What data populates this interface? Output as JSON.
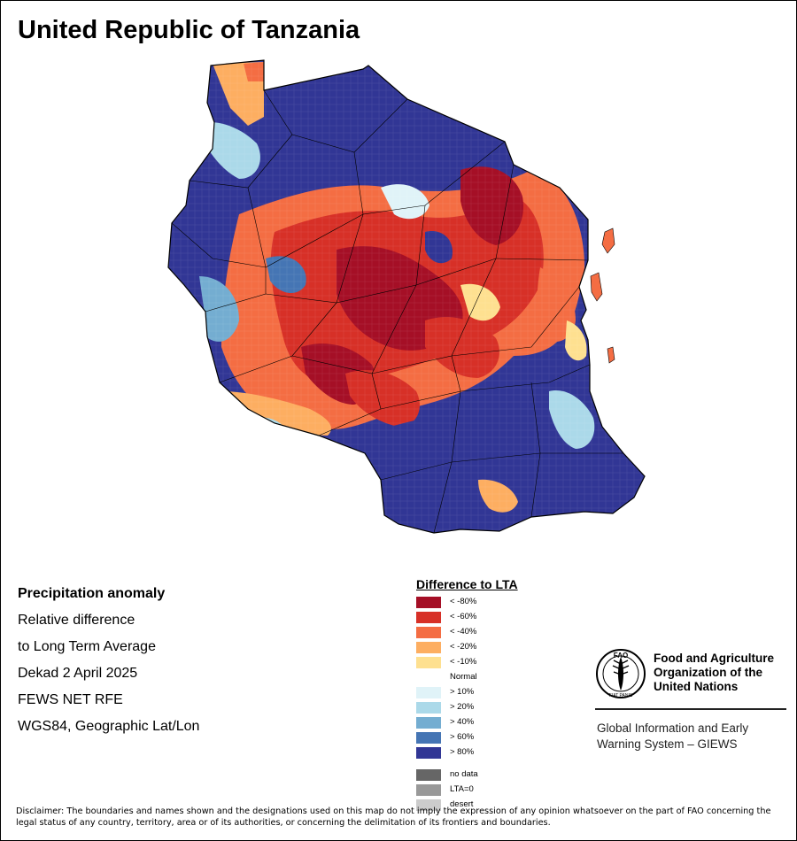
{
  "title": "United Republic of Tanzania",
  "info": {
    "heading": "Precipitation anomaly",
    "line1": "Relative difference",
    "line2": "to Long Term Average",
    "period": "Dekad 2 April 2025",
    "source": "FEWS NET RFE",
    "projection": "WGS84, Geographic Lat/Lon"
  },
  "legend": {
    "title": "Difference to LTA",
    "items": [
      {
        "label": "< -80%",
        "color": "#a50f26"
      },
      {
        "label": "< -60%",
        "color": "#d73027"
      },
      {
        "label": "< -40%",
        "color": "#f46d43"
      },
      {
        "label": "< -20%",
        "color": "#fdae61"
      },
      {
        "label": "< -10%",
        "color": "#fee090"
      },
      {
        "label": "Normal",
        "color": "#ffffff"
      },
      {
        "label": "> 10%",
        "color": "#e0f3f8"
      },
      {
        "label": "> 20%",
        "color": "#abd9e9"
      },
      {
        "label": "> 40%",
        "color": "#74add1"
      },
      {
        "label": "> 60%",
        "color": "#4575b4"
      },
      {
        "label": "> 80%",
        "color": "#313695"
      }
    ],
    "extra": [
      {
        "label": "no data",
        "color": "#666666"
      },
      {
        "label": "LTA=0",
        "color": "#999999"
      },
      {
        "label": "desert",
        "color": "#cccccc"
      }
    ]
  },
  "fao": {
    "logo_text_top": "FAO",
    "logo_text_bottom": "FIAT PANIS",
    "name_line1": "Food and Agriculture",
    "name_line2": "Organization of the",
    "name_line3": "United Nations",
    "giews_line1": "Global Information and Early",
    "giews_line2": "Warning System – GIEWS"
  },
  "disclaimer": "Disclaimer: The boundaries and names shown and the designations used on this map do not imply the expression of any opinion whatsoever on the part of FAO concerning the legal status of any country, territory, area or of its authorities, or concerning the delimitation of its frontiers and boundaries.",
  "map_data": {
    "country": "Tanzania",
    "dominant_patterns": {
      "north_central_east": "< -60% to < -80%",
      "south_and_west": "> 80%"
    }
  }
}
